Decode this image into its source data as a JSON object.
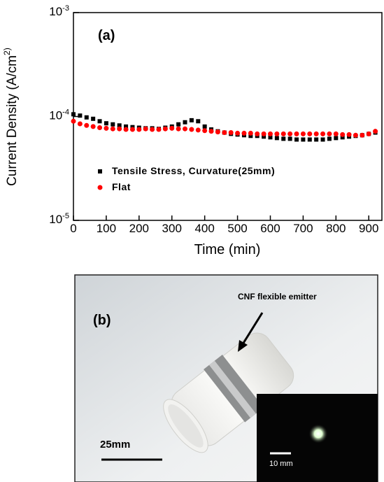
{
  "chart_data": {
    "type": "scatter",
    "panel_label": "(a)",
    "xlabel": "Time (min)",
    "ylabel": "Current Density (A/cm^2)",
    "xlim": [
      0,
      940
    ],
    "xticks": [
      0,
      100,
      200,
      300,
      400,
      500,
      600,
      700,
      800,
      900
    ],
    "ylim": [
      1e-05,
      0.001
    ],
    "log_y": true,
    "yticks": [
      {
        "value": 1e-05,
        "label": "10^-5"
      },
      {
        "value": 0.0001,
        "label": "10^-4"
      },
      {
        "value": 0.001,
        "label": "10^-3"
      }
    ],
    "x": [
      0,
      20,
      40,
      60,
      80,
      100,
      120,
      140,
      160,
      180,
      200,
      220,
      240,
      260,
      280,
      300,
      320,
      340,
      360,
      380,
      400,
      420,
      440,
      460,
      480,
      500,
      520,
      540,
      560,
      580,
      600,
      620,
      640,
      660,
      680,
      700,
      720,
      740,
      760,
      780,
      800,
      820,
      840,
      860,
      880,
      900,
      920
    ],
    "series": [
      {
        "name": "Tensile Stress, Curvature(25mm)",
        "color": "#000000",
        "marker": "square",
        "values": [
          0.000105,
          0.000102,
          9.8e-05,
          9.5e-05,
          9e-05,
          8.6e-05,
          8.4e-05,
          8.2e-05,
          8e-05,
          7.9e-05,
          7.8e-05,
          7.7e-05,
          7.7e-05,
          7.6e-05,
          7.8e-05,
          8e-05,
          8.4e-05,
          8.8e-05,
          9.2e-05,
          9e-05,
          8e-05,
          7.5e-05,
          7.2e-05,
          7e-05,
          6.8e-05,
          6.7e-05,
          6.6e-05,
          6.5e-05,
          6.5e-05,
          6.4e-05,
          6.3e-05,
          6.2e-05,
          6.1e-05,
          6.1e-05,
          6e-05,
          6e-05,
          6e-05,
          6e-05,
          6e-05,
          6.1e-05,
          6.2e-05,
          6.3e-05,
          6.4e-05,
          6.5e-05,
          6.6e-05,
          6.8e-05,
          7e-05
        ]
      },
      {
        "name": "Flat",
        "color": "#ff0000",
        "marker": "circle",
        "values": [
          9e-05,
          8.5e-05,
          8.2e-05,
          8e-05,
          7.8e-05,
          7.7e-05,
          7.6e-05,
          7.6e-05,
          7.5e-05,
          7.5e-05,
          7.5e-05,
          7.6e-05,
          7.5e-05,
          7.5e-05,
          7.6e-05,
          7.7e-05,
          7.6e-05,
          7.6e-05,
          7.5e-05,
          7.4e-05,
          7.3e-05,
          7.2e-05,
          7.1e-05,
          7e-05,
          7e-05,
          6.9e-05,
          6.9e-05,
          6.9e-05,
          6.8e-05,
          6.8e-05,
          6.8e-05,
          6.8e-05,
          6.8e-05,
          6.8e-05,
          6.8e-05,
          6.8e-05,
          6.8e-05,
          6.8e-05,
          6.8e-05,
          6.8e-05,
          6.8e-05,
          6.7e-05,
          6.7e-05,
          6.6e-05,
          6.6e-05,
          6.8e-05,
          7.2e-05
        ]
      }
    ]
  },
  "photo": {
    "panel_label": "(b)",
    "emitter_label": "CNF flexible emitter",
    "scale_bar": "25mm",
    "inset_scale_bar": "10 mm"
  }
}
